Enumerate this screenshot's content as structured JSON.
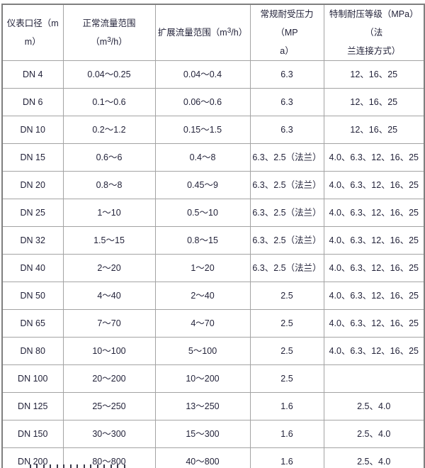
{
  "table": {
    "header": {
      "diameter": {
        "line1": "仪表口径（m",
        "line2": "m）"
      },
      "normal_flow": {
        "prefix": "正常流量范围（m",
        "sup": "3",
        "suffix": "/h）"
      },
      "extended_flow": {
        "prefix": "扩展流量范围（m",
        "sup": "3",
        "suffix": "/h）"
      },
      "pressure": {
        "line1": "常规耐受压力（MP",
        "line2": "a）"
      },
      "special": {
        "line1": "特制耐压等级（MPa）（法",
        "line2": "兰连接方式）"
      }
    },
    "rows": [
      [
        "DN 4",
        "0.04～0.25",
        "0.04～0.4",
        "6.3",
        "12、16、25"
      ],
      [
        "DN 6",
        "0.1～0.6",
        "0.06～0.6",
        "6.3",
        "12、16、25"
      ],
      [
        "DN 10",
        "0.2～1.2",
        "0.15～1.5",
        "6.3",
        "12、16、25"
      ],
      [
        "DN 15",
        "0.6～6",
        "0.4～8",
        "6.3、2.5（法兰）",
        "4.0、6.3、12、16、25"
      ],
      [
        "DN 20",
        "0.8～8",
        "0.45～9",
        "6.3、2.5（法兰）",
        "4.0、6.3、12、16、25"
      ],
      [
        "DN 25",
        "1～10",
        "0.5～10",
        "6.3、2.5（法兰）",
        "4.0、6.3、12、16、25"
      ],
      [
        "DN 32",
        "1.5～15",
        "0.8～15",
        "6.3、2.5（法兰）",
        "4.0、6.3、12、16、25"
      ],
      [
        "DN 40",
        "2～20",
        "1～20",
        "6.3、2.5（法兰）",
        "4.0、6.3、12、16、25"
      ],
      [
        "DN 50",
        "4～40",
        "2～40",
        "2.5",
        "4.0、6.3、12、16、25"
      ],
      [
        "DN 65",
        "7～70",
        "4～70",
        "2.5",
        "4.0、6.3、12、16、25"
      ],
      [
        "DN 80",
        "10～100",
        "5～100",
        "2.5",
        "4.0、6.3、12、16、25"
      ],
      [
        "DN 100",
        "20～200",
        "10～200",
        "2.5",
        ""
      ],
      [
        "DN 125",
        "25～250",
        "13～250",
        "1.6",
        "2.5、4.0"
      ],
      [
        "DN 150",
        "30～300",
        "15～300",
        "1.6",
        "2.5、4.0"
      ],
      [
        "DN 200",
        "80～800",
        "40～800",
        "1.6",
        "2.5、4.0"
      ]
    ]
  },
  "colors": {
    "text": "#23233a",
    "inner_border": "#a3a3a3",
    "outer_border": "#7f7f7f",
    "background": "#ffffff"
  }
}
